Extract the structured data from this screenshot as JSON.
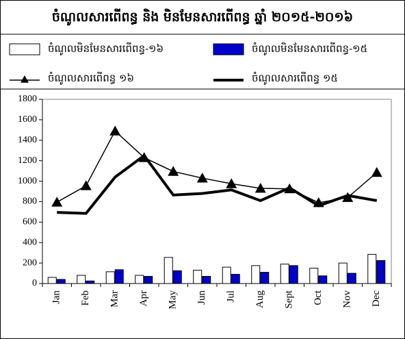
{
  "chart_data": {
    "type": "combo",
    "title": "ចំណូលសារពើពន្ធ និង មិនមែនសារពើពន្ធ ឆ្នាំ ២០១៥-២០១៦",
    "categories": [
      "Jan",
      "Feb",
      "Mar",
      "Apr",
      "May",
      "Jun",
      "Jul",
      "Aug",
      "Sept",
      "Oct",
      "Nov",
      "Dec"
    ],
    "series": [
      {
        "name": "ចំណូលមិនមែនសារពើពន្ធ-១៦",
        "type": "bar",
        "color": "#ffffff",
        "values": [
          60,
          80,
          115,
          80,
          255,
          130,
          160,
          175,
          190,
          150,
          200,
          285
        ]
      },
      {
        "name": "ចំណូលមិនមែនសារពើពន្ធ-១៥",
        "type": "bar",
        "color": "#0000cc",
        "values": [
          40,
          25,
          135,
          70,
          125,
          70,
          90,
          110,
          175,
          75,
          100,
          225
        ]
      },
      {
        "name": "ចំណូលសារពើពន្ធ ១៦",
        "type": "line",
        "marker": "triangle",
        "color": "#000000",
        "values": [
          795,
          955,
          1490,
          1230,
          1095,
          1030,
          975,
          930,
          925,
          790,
          840,
          1085
        ]
      },
      {
        "name": "ចំណូលសារពើពន្ធ ១៥",
        "type": "line",
        "color": "#000000",
        "values": [
          695,
          685,
          1040,
          1250,
          865,
          880,
          915,
          810,
          935,
          760,
          860,
          810
        ]
      }
    ],
    "ylim": [
      0,
      1800
    ],
    "yticks": [
      0,
      200,
      400,
      600,
      800,
      1000,
      1200,
      1400,
      1600,
      1800
    ]
  }
}
